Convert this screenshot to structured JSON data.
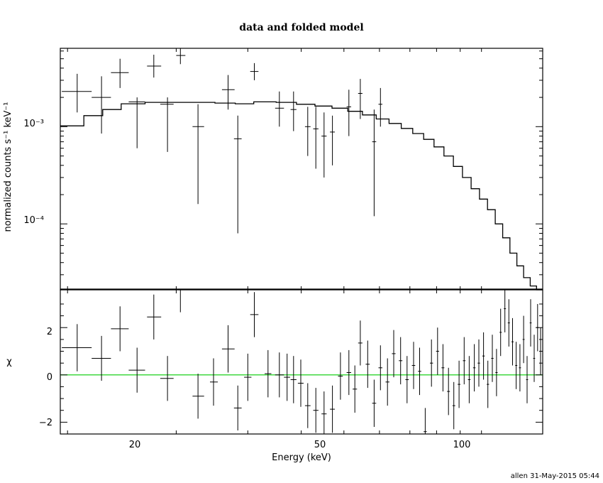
{
  "title": "data and folded model",
  "footer": "allen 31-May-2015 05:44",
  "colors": {
    "data": "#000000",
    "model": "#000000",
    "zero_line": "#00cc00",
    "background": "#ffffff"
  },
  "chart_data": [
    {
      "type": "scatter",
      "panel": "top",
      "ylabel": "normalized counts s⁻¹ keV⁻¹",
      "xscale": "log",
      "yscale": "log",
      "xlim": [
        14.5,
        140
      ],
      "ylim": [
        2.1e-05,
        0.0064
      ],
      "ytick_labels": [
        "10⁻³",
        "10⁻⁴"
      ],
      "ytick_values": [
        0.001,
        0.0001
      ],
      "series": [
        {
          "kind": "data_with_errors",
          "points": [
            {
              "x": 15.7,
              "xlo": 14.6,
              "xhi": 16.8,
              "y": 0.0023,
              "ylo": 0.0014,
              "yhi": 0.0035
            },
            {
              "x": 17.6,
              "xlo": 16.8,
              "xhi": 18.4,
              "y": 0.002,
              "ylo": 0.00085,
              "yhi": 0.0033
            },
            {
              "x": 19.2,
              "xlo": 18.4,
              "xhi": 20.0,
              "y": 0.0036,
              "ylo": 0.0025,
              "yhi": 0.005
            },
            {
              "x": 20.8,
              "xlo": 20.0,
              "xhi": 21.6,
              "y": 0.0018,
              "ylo": 0.0006,
              "yhi": 0.002
            },
            {
              "x": 22.5,
              "xlo": 21.8,
              "xhi": 23.3,
              "y": 0.0042,
              "ylo": 0.0032,
              "yhi": 0.0055
            },
            {
              "x": 24.0,
              "xlo": 23.2,
              "xhi": 24.7,
              "y": 0.0017,
              "ylo": 0.00055,
              "yhi": 0.002
            },
            {
              "x": 25.5,
              "xlo": 25.0,
              "xhi": 26.1,
              "y": 0.0054,
              "ylo": 0.0044,
              "yhi": 0.0064
            },
            {
              "x": 27.7,
              "xlo": 27.0,
              "xhi": 28.5,
              "y": 0.001,
              "ylo": 0.00016,
              "yhi": 0.0017
            },
            {
              "x": 31.9,
              "xlo": 31.0,
              "xhi": 32.9,
              "y": 0.0024,
              "ylo": 0.0015,
              "yhi": 0.0034
            },
            {
              "x": 33.4,
              "xlo": 32.8,
              "xhi": 34.0,
              "y": 0.00075,
              "ylo": 8e-05,
              "yhi": 0.0013
            },
            {
              "x": 36.1,
              "xlo": 35.4,
              "xhi": 36.8,
              "y": 0.0037,
              "ylo": 0.003,
              "yhi": 0.0045
            },
            {
              "x": 40.6,
              "xlo": 39.8,
              "xhi": 41.5,
              "y": 0.00155,
              "ylo": 0.001,
              "yhi": 0.0023
            },
            {
              "x": 43.4,
              "xlo": 42.8,
              "xhi": 44.0,
              "y": 0.0015,
              "ylo": 0.0009,
              "yhi": 0.0023
            },
            {
              "x": 46.4,
              "xlo": 45.8,
              "xhi": 47.0,
              "y": 0.001,
              "ylo": 0.0005,
              "yhi": 0.0016
            },
            {
              "x": 48.2,
              "xlo": 47.6,
              "xhi": 48.8,
              "y": 0.00095,
              "ylo": 0.00037,
              "yhi": 0.0016
            },
            {
              "x": 50.1,
              "xlo": 49.5,
              "xhi": 50.7,
              "y": 0.0008,
              "ylo": 0.0003,
              "yhi": 0.0014
            },
            {
              "x": 52.1,
              "xlo": 51.5,
              "xhi": 52.7,
              "y": 0.00088,
              "ylo": 0.0004,
              "yhi": 0.0013
            },
            {
              "x": 56.3,
              "xlo": 55.7,
              "xhi": 56.9,
              "y": 0.0016,
              "ylo": 0.0008,
              "yhi": 0.0024
            },
            {
              "x": 59.4,
              "xlo": 58.8,
              "xhi": 60.0,
              "y": 0.0022,
              "ylo": 0.0012,
              "yhi": 0.0031
            },
            {
              "x": 63.4,
              "xlo": 62.8,
              "xhi": 64.0,
              "y": 0.0007,
              "ylo": 0.00012,
              "yhi": 0.0015
            },
            {
              "x": 65.3,
              "xlo": 64.7,
              "xhi": 65.9,
              "y": 0.0017,
              "ylo": 0.001,
              "yhi": 0.0025
            }
          ]
        },
        {
          "kind": "model_step",
          "name": "",
          "bins": [
            [
              14.5,
              16.2,
              0.00102
            ],
            [
              16.2,
              17.7,
              0.0013
            ],
            [
              17.7,
              19.3,
              0.0015
            ],
            [
              19.3,
              21.6,
              0.00172
            ],
            [
              21.6,
              25.0,
              0.00178
            ],
            [
              25.0,
              30.0,
              0.00178
            ],
            [
              30.0,
              33.0,
              0.00175
            ],
            [
              33.0,
              36.0,
              0.00172
            ],
            [
              36.0,
              40.0,
              0.0018
            ],
            [
              40.0,
              44.0,
              0.00178
            ],
            [
              44.0,
              48.0,
              0.0017
            ],
            [
              48.0,
              52.0,
              0.00163
            ],
            [
              52.0,
              56.0,
              0.00155
            ],
            [
              56.0,
              60.0,
              0.00144
            ],
            [
              60.0,
              64.0,
              0.00132
            ],
            [
              64.0,
              68.0,
              0.0012
            ],
            [
              68.0,
              72.0,
              0.00108
            ],
            [
              72.0,
              76.0,
              0.00096
            ],
            [
              76.0,
              80.0,
              0.00085
            ],
            [
              80.0,
              84.0,
              0.00074
            ],
            [
              84.0,
              88.0,
              0.00062
            ],
            [
              88.0,
              92.0,
              0.0005
            ],
            [
              92.0,
              96.0,
              0.00039
            ],
            [
              96.0,
              100.0,
              0.0003
            ],
            [
              100.0,
              104.0,
              0.00023
            ],
            [
              104.0,
              108.0,
              0.00018
            ],
            [
              108.0,
              112.0,
              0.00014
            ],
            [
              112.0,
              116.0,
              0.0001
            ],
            [
              116.0,
              120.0,
              7.2e-05
            ],
            [
              120.0,
              124.0,
              5e-05
            ],
            [
              124.0,
              128.0,
              3.7e-05
            ],
            [
              128.0,
              132.0,
              2.8e-05
            ],
            [
              132.0,
              136.0,
              2.3e-05
            ],
            [
              136.0,
              140.0,
              2.1e-05
            ]
          ]
        }
      ]
    },
    {
      "type": "scatter",
      "panel": "bottom",
      "xlabel": "Energy (keV)",
      "ylabel": "χ",
      "xscale": "log",
      "xlim": [
        14.5,
        140
      ],
      "ylim": [
        -2.5,
        3.6
      ],
      "ytick_labels": [
        "2",
        "0",
        "−2"
      ],
      "ytick_values": [
        2,
        0,
        -2
      ],
      "xtick_labels": [
        "20",
        "50",
        "100"
      ],
      "xtick_values": [
        20,
        50,
        100
      ],
      "reference_line": 0,
      "series": [
        {
          "kind": "residuals",
          "points": [
            {
              "x": 15.7,
              "xlo": 14.6,
              "xhi": 16.8,
              "y": 1.15,
              "err": 1.0
            },
            {
              "x": 17.6,
              "xlo": 16.8,
              "xhi": 18.4,
              "y": 0.7,
              "err": 0.95
            },
            {
              "x": 19.2,
              "xlo": 18.4,
              "xhi": 20.0,
              "y": 1.95,
              "err": 0.95
            },
            {
              "x": 20.8,
              "xlo": 20.0,
              "xhi": 21.6,
              "y": 0.2,
              "err": 0.95
            },
            {
              "x": 22.5,
              "xlo": 21.8,
              "xhi": 23.3,
              "y": 2.45,
              "err": 0.95
            },
            {
              "x": 24.0,
              "xlo": 23.2,
              "xhi": 24.7,
              "y": -0.15,
              "err": 0.95
            },
            {
              "x": 25.5,
              "xlo": 25.0,
              "xhi": 26.1,
              "y": 3.6,
              "err": 0.95
            },
            {
              "x": 27.7,
              "xlo": 27.0,
              "xhi": 28.5,
              "y": -0.9,
              "err": 0.95
            },
            {
              "x": 29.8,
              "xlo": 29.3,
              "xhi": 30.4,
              "y": -0.3,
              "err": 1.0
            },
            {
              "x": 31.9,
              "xlo": 31.0,
              "xhi": 32.9,
              "y": 1.1,
              "err": 1.0
            },
            {
              "x": 33.4,
              "xlo": 32.8,
              "xhi": 34.0,
              "y": -1.4,
              "err": 0.95
            },
            {
              "x": 35.0,
              "xlo": 34.4,
              "xhi": 35.6,
              "y": -0.1,
              "err": 1.0
            },
            {
              "x": 36.1,
              "xlo": 35.4,
              "xhi": 36.8,
              "y": 2.55,
              "err": 0.95
            },
            {
              "x": 38.5,
              "xlo": 37.9,
              "xhi": 39.1,
              "y": 0.05,
              "err": 1.0
            },
            {
              "x": 40.6,
              "xlo": 39.8,
              "xhi": 41.5,
              "y": 0.0,
              "err": 0.95
            },
            {
              "x": 42.1,
              "xlo": 41.5,
              "xhi": 42.7,
              "y": -0.1,
              "err": 1.0
            },
            {
              "x": 43.4,
              "xlo": 42.8,
              "xhi": 44.0,
              "y": -0.2,
              "err": 1.0
            },
            {
              "x": 44.9,
              "xlo": 44.3,
              "xhi": 45.5,
              "y": -0.35,
              "err": 1.0
            },
            {
              "x": 46.4,
              "xlo": 45.8,
              "xhi": 47.0,
              "y": -1.3,
              "err": 0.95
            },
            {
              "x": 48.2,
              "xlo": 47.6,
              "xhi": 48.8,
              "y": -1.5,
              "err": 0.95
            },
            {
              "x": 50.1,
              "xlo": 49.5,
              "xhi": 50.7,
              "y": -1.65,
              "err": 0.95
            },
            {
              "x": 52.1,
              "xlo": 51.5,
              "xhi": 52.7,
              "y": -1.45,
              "err": 1.0
            },
            {
              "x": 54.1,
              "xlo": 53.5,
              "xhi": 54.7,
              "y": -0.05,
              "err": 1.0
            },
            {
              "x": 56.3,
              "xlo": 55.7,
              "xhi": 56.9,
              "y": 0.1,
              "err": 0.95
            },
            {
              "x": 57.9,
              "xlo": 57.3,
              "xhi": 58.5,
              "y": -0.6,
              "err": 1.0
            },
            {
              "x": 59.4,
              "xlo": 58.8,
              "xhi": 60.0,
              "y": 1.35,
              "err": 0.95
            },
            {
              "x": 61.5,
              "xlo": 60.9,
              "xhi": 62.1,
              "y": 0.45,
              "err": 1.0
            },
            {
              "x": 63.4,
              "xlo": 62.8,
              "xhi": 64.0,
              "y": -1.2,
              "err": 1.0
            },
            {
              "x": 65.3,
              "xlo": 64.7,
              "xhi": 65.9,
              "y": 0.3,
              "err": 0.95
            },
            {
              "x": 67.5,
              "xlo": 66.9,
              "xhi": 68.1,
              "y": -0.3,
              "err": 1.0
            },
            {
              "x": 69.5,
              "xlo": 68.9,
              "xhi": 70.1,
              "y": 0.9,
              "err": 1.0
            },
            {
              "x": 71.8,
              "xlo": 71.2,
              "xhi": 72.4,
              "y": 0.6,
              "err": 1.0
            },
            {
              "x": 74.0,
              "xlo": 73.4,
              "xhi": 74.6,
              "y": -0.2,
              "err": 1.0
            },
            {
              "x": 76.3,
              "xlo": 75.7,
              "xhi": 76.9,
              "y": 0.4,
              "err": 1.0
            },
            {
              "x": 78.5,
              "xlo": 77.9,
              "xhi": 79.1,
              "y": 0.15,
              "err": 1.0
            },
            {
              "x": 80.6,
              "xlo": 80.0,
              "xhi": 81.2,
              "y": -2.4,
              "err": 1.0
            },
            {
              "x": 83.0,
              "xlo": 82.4,
              "xhi": 83.6,
              "y": 0.5,
              "err": 1.0
            },
            {
              "x": 85.4,
              "xlo": 84.8,
              "xhi": 86.0,
              "y": 1.0,
              "err": 1.0
            },
            {
              "x": 87.6,
              "xlo": 87.0,
              "xhi": 88.2,
              "y": 0.3,
              "err": 1.0
            },
            {
              "x": 89.9,
              "xlo": 89.3,
              "xhi": 90.5,
              "y": -0.7,
              "err": 1.0
            },
            {
              "x": 92.2,
              "xlo": 91.6,
              "xhi": 92.8,
              "y": -1.3,
              "err": 1.0
            },
            {
              "x": 94.5,
              "xlo": 93.9,
              "xhi": 95.1,
              "y": -0.4,
              "err": 1.0
            },
            {
              "x": 96.8,
              "xlo": 96.2,
              "xhi": 97.4,
              "y": 0.6,
              "err": 1.0
            },
            {
              "x": 99.1,
              "xlo": 98.5,
              "xhi": 99.7,
              "y": -0.2,
              "err": 1.0
            },
            {
              "x": 101.5,
              "xlo": 100.9,
              "xhi": 102.1,
              "y": 0.3,
              "err": 1.0
            },
            {
              "x": 103.7,
              "xlo": 103.1,
              "xhi": 104.3,
              "y": 0.5,
              "err": 1.0
            },
            {
              "x": 106.0,
              "xlo": 105.4,
              "xhi": 106.6,
              "y": 0.8,
              "err": 1.0
            },
            {
              "x": 108.2,
              "xlo": 107.6,
              "xhi": 108.8,
              "y": -0.4,
              "err": 1.0
            },
            {
              "x": 110.5,
              "xlo": 109.9,
              "xhi": 111.1,
              "y": 0.7,
              "err": 1.0
            },
            {
              "x": 112.7,
              "xlo": 112.1,
              "xhi": 113.3,
              "y": 0.1,
              "err": 1.0
            },
            {
              "x": 114.9,
              "xlo": 114.3,
              "xhi": 115.5,
              "y": 1.8,
              "err": 1.0
            },
            {
              "x": 117.2,
              "xlo": 116.6,
              "xhi": 117.8,
              "y": 2.8,
              "err": 1.0
            },
            {
              "x": 119.4,
              "xlo": 118.8,
              "xhi": 120.0,
              "y": 2.2,
              "err": 1.0
            },
            {
              "x": 121.5,
              "xlo": 120.9,
              "xhi": 122.1,
              "y": 1.4,
              "err": 1.0
            },
            {
              "x": 123.6,
              "xlo": 123.0,
              "xhi": 124.2,
              "y": 0.4,
              "err": 1.0
            },
            {
              "x": 125.8,
              "xlo": 125.2,
              "xhi": 126.4,
              "y": 0.3,
              "err": 1.0
            },
            {
              "x": 128.0,
              "xlo": 127.4,
              "xhi": 128.6,
              "y": 1.5,
              "err": 1.0
            },
            {
              "x": 130.1,
              "xlo": 129.5,
              "xhi": 130.7,
              "y": -0.2,
              "err": 1.0
            },
            {
              "x": 132.3,
              "xlo": 131.7,
              "xhi": 132.9,
              "y": 2.2,
              "err": 1.0
            },
            {
              "x": 134.5,
              "xlo": 133.9,
              "xhi": 135.1,
              "y": 0.7,
              "err": 1.0
            },
            {
              "x": 136.7,
              "xlo": 136.1,
              "xhi": 137.3,
              "y": 2.0,
              "err": 1.0
            },
            {
              "x": 138.6,
              "xlo": 138.0,
              "xhi": 139.2,
              "y": 1.0,
              "err": 1.0
            }
          ]
        }
      ]
    }
  ]
}
